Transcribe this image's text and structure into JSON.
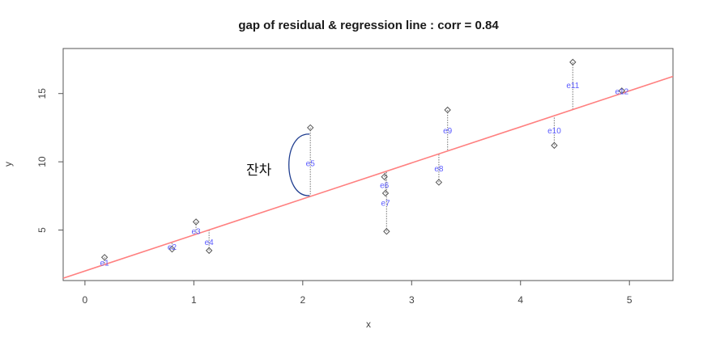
{
  "chart_data": {
    "type": "scatter",
    "title": "gap of residual & regression line : corr = 0.84",
    "xlabel": "x",
    "ylabel": "y",
    "xlim": [
      -0.2,
      5.4
    ],
    "ylim": [
      1.3,
      18.3
    ],
    "x_ticks": [
      0,
      1,
      2,
      3,
      4,
      5
    ],
    "y_ticks": [
      5,
      10,
      15
    ],
    "grid": false,
    "regression_line": {
      "intercept": 2.0,
      "slope": 2.64,
      "color": "#ff8080"
    },
    "observed": [
      {
        "x": 0.18,
        "y": 3.0
      },
      {
        "x": 0.8,
        "y": 3.6
      },
      {
        "x": 1.02,
        "y": 5.6
      },
      {
        "x": 1.14,
        "y": 3.5
      },
      {
        "x": 2.07,
        "y": 12.5
      },
      {
        "x": 2.75,
        "y": 8.9
      },
      {
        "x": 2.76,
        "y": 7.7
      },
      {
        "x": 2.77,
        "y": 4.9
      },
      {
        "x": 3.25,
        "y": 8.5
      },
      {
        "x": 3.33,
        "y": 13.8
      },
      {
        "x": 4.31,
        "y": 11.2
      },
      {
        "x": 4.48,
        "y": 17.3
      },
      {
        "x": 4.93,
        "y": 15.2
      }
    ],
    "residual_labels": [
      {
        "label": "e1",
        "x": 0.18,
        "y": 2.6
      },
      {
        "label": "e2",
        "x": 0.8,
        "y": 3.75
      },
      {
        "label": "e3",
        "x": 1.02,
        "y": 4.9
      },
      {
        "label": "e4",
        "x": 1.14,
        "y": 4.1
      },
      {
        "label": "e5",
        "x": 2.07,
        "y": 9.9
      },
      {
        "label": "e6",
        "x": 2.75,
        "y": 8.3
      },
      {
        "label": "e7",
        "x": 2.76,
        "y": 7.0
      },
      {
        "label": "e8",
        "x": 3.25,
        "y": 9.5
      },
      {
        "label": "e9",
        "x": 3.33,
        "y": 12.3
      },
      {
        "label": "e10",
        "x": 4.31,
        "y": 12.3
      },
      {
        "label": "e11",
        "x": 4.48,
        "y": 15.6
      },
      {
        "label": "e12",
        "x": 4.93,
        "y": 15.15
      }
    ],
    "annotation": {
      "text": "잔차",
      "color": "#1f3d8f"
    },
    "colors": {
      "points": "#555555",
      "labels": "#5a5aff",
      "residual": "#888888",
      "frame": "#555555"
    }
  }
}
